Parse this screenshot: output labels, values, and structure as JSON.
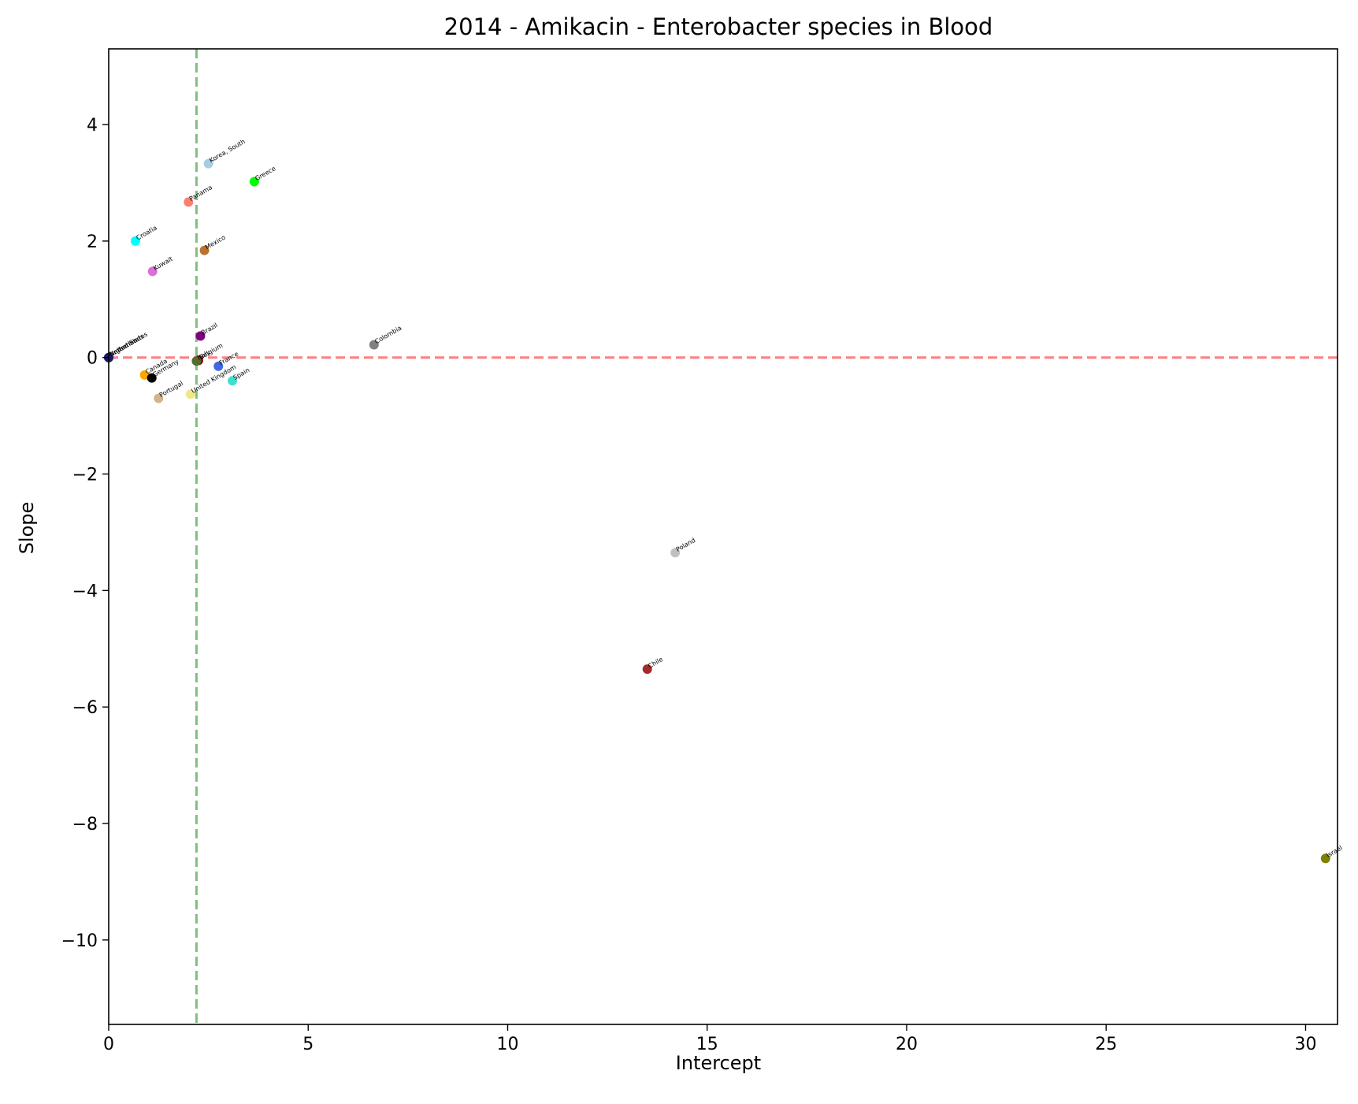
{
  "chart_data": {
    "type": "scatter",
    "title": "2014 - Amikacin - Enterobacter species in Blood",
    "xlabel": "Intercept",
    "ylabel": "Slope",
    "xlim": [
      0,
      30.8
    ],
    "ylim": [
      -11.45,
      5.3
    ],
    "xticks": [
      0,
      5,
      10,
      15,
      20,
      25,
      30
    ],
    "yticks": [
      4,
      2,
      0,
      -2,
      -4,
      -6,
      -8,
      -10
    ],
    "xtick_labels": [
      "0",
      "5",
      "10",
      "15",
      "20",
      "25",
      "30"
    ],
    "ytick_labels": [
      "4",
      "2",
      "0",
      "−2",
      "−4",
      "−6",
      "−8",
      "−10"
    ],
    "grid": false,
    "reference_lines": [
      {
        "orientation": "horizontal",
        "value": 0,
        "color": "#ff7f7f",
        "style": "dashed"
      },
      {
        "orientation": "vertical",
        "value": 2.2,
        "color": "#7fbf7f",
        "style": "dashed"
      }
    ],
    "points": [
      {
        "label": "Korea, South",
        "x": 2.5,
        "y": 3.33,
        "color": "#a6cee3"
      },
      {
        "label": "Greece",
        "x": 3.65,
        "y": 3.02,
        "color": "#00ff00"
      },
      {
        "label": "Panama",
        "x": 2.0,
        "y": 2.67,
        "color": "#fa8072"
      },
      {
        "label": "Croatia",
        "x": 0.67,
        "y": 2.0,
        "color": "#00ffff"
      },
      {
        "label": "Mexico",
        "x": 2.4,
        "y": 1.84,
        "color": "#b8732e"
      },
      {
        "label": "Kuwait",
        "x": 1.1,
        "y": 1.48,
        "color": "#da70d6"
      },
      {
        "label": "Brazil",
        "x": 2.3,
        "y": 0.37,
        "color": "#800080"
      },
      {
        "label": "Colombia",
        "x": 6.65,
        "y": 0.22,
        "color": "#808080"
      },
      {
        "label": "United States",
        "x": 0.0,
        "y": 0.0,
        "color": "#dc143c"
      },
      {
        "label": "Argentina",
        "x": 0.0,
        "y": 0.0,
        "color": "#556b2f"
      },
      {
        "label": "Netherlands",
        "x": 0.0,
        "y": 0.0,
        "color": "#191970"
      },
      {
        "label": "Belgium",
        "x": 2.25,
        "y": -0.05,
        "color": "#8b0000"
      },
      {
        "label": "Italy",
        "x": 2.2,
        "y": -0.06,
        "color": "#556b2f"
      },
      {
        "label": "France",
        "x": 2.75,
        "y": -0.15,
        "color": "#4169e1"
      },
      {
        "label": "Canada",
        "x": 0.9,
        "y": -0.3,
        "color": "#ffa500"
      },
      {
        "label": "Germany",
        "x": 1.08,
        "y": -0.35,
        "color": "#000000"
      },
      {
        "label": "Spain",
        "x": 3.1,
        "y": -0.4,
        "color": "#40e0d0"
      },
      {
        "label": "United Kingdom",
        "x": 2.05,
        "y": -0.63,
        "color": "#f0e68c"
      },
      {
        "label": "Portugal",
        "x": 1.25,
        "y": -0.7,
        "color": "#d2b48c"
      },
      {
        "label": "Poland",
        "x": 14.2,
        "y": -3.35,
        "color": "#c0c0c0"
      },
      {
        "label": "Chile",
        "x": 13.5,
        "y": -5.35,
        "color": "#a52a2a"
      },
      {
        "label": "Israel",
        "x": 30.5,
        "y": -8.6,
        "color": "#808000"
      }
    ]
  }
}
